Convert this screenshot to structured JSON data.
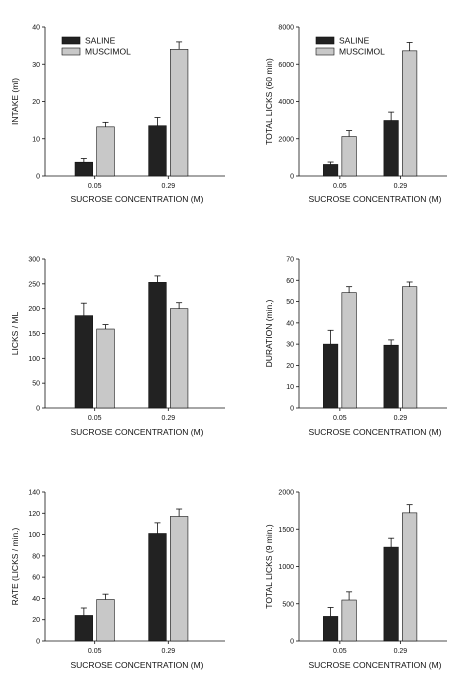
{
  "colors": {
    "saline": "#222222",
    "muscimol": "#c8c8c8",
    "axis": "#111111",
    "error_bar": "#111111"
  },
  "chart_data": [
    {
      "type": "bar",
      "categories": [
        "0.05",
        "0.29"
      ],
      "xlabel": "SUCROSE CONCENTRATION (M)",
      "ylabel": "INTAKE (ml)",
      "ylim": [
        0,
        40
      ],
      "yticks": [
        "0",
        "10",
        "20",
        "30",
        "40"
      ],
      "legend": {
        "position": "top-left",
        "entries": [
          "SALINE",
          "MUSCIMOL"
        ]
      },
      "series": [
        {
          "name": "SALINE",
          "values": [
            3.7,
            13.5
          ],
          "errors": [
            1.0,
            2.2
          ]
        },
        {
          "name": "MUSCIMOL",
          "values": [
            13.2,
            34.0
          ],
          "errors": [
            1.2,
            2.0
          ]
        }
      ]
    },
    {
      "type": "bar",
      "categories": [
        "0.05",
        "0.29"
      ],
      "xlabel": "SUCROSE CONCENTRATION (M)",
      "ylabel": "TOTAL LICKS (60 min)",
      "ylim": [
        0,
        8000
      ],
      "yticks": [
        "0",
        "2000",
        "4000",
        "6000",
        "8000"
      ],
      "legend": {
        "position": "top-left",
        "entries": [
          "SALINE",
          "MUSCIMOL"
        ]
      },
      "series": [
        {
          "name": "SALINE",
          "values": [
            620,
            2980
          ],
          "errors": [
            130,
            450
          ]
        },
        {
          "name": "MUSCIMOL",
          "values": [
            2120,
            6720
          ],
          "errors": [
            320,
            450
          ]
        }
      ]
    },
    {
      "type": "bar",
      "categories": [
        "0.05",
        "0.29"
      ],
      "xlabel": "SUCROSE CONCENTRATION (M)",
      "ylabel": "LICKS / ML",
      "ylim": [
        0,
        300
      ],
      "yticks": [
        "0",
        "50",
        "100",
        "150",
        "200",
        "250",
        "300"
      ],
      "series": [
        {
          "name": "SALINE",
          "values": [
            186,
            253
          ],
          "errors": [
            25,
            13
          ]
        },
        {
          "name": "MUSCIMOL",
          "values": [
            159,
            200
          ],
          "errors": [
            9,
            12
          ]
        }
      ]
    },
    {
      "type": "bar",
      "categories": [
        "0.05",
        "0.29"
      ],
      "xlabel": "SUCROSE CONCENTRATION (M)",
      "ylabel": "DURATION (min.)",
      "ylim": [
        0,
        70
      ],
      "yticks": [
        "0",
        "10",
        "20",
        "30",
        "40",
        "50",
        "60",
        "70"
      ],
      "series": [
        {
          "name": "SALINE",
          "values": [
            30,
            29.5
          ],
          "errors": [
            6.5,
            2.5
          ]
        },
        {
          "name": "MUSCIMOL",
          "values": [
            54.2,
            57.0
          ],
          "errors": [
            2.8,
            2.2
          ]
        }
      ]
    },
    {
      "type": "bar",
      "categories": [
        "0.05",
        "0.29"
      ],
      "xlabel": "SUCROSE CONCENTRATION (M)",
      "ylabel": "RATE (LICKS / min.)",
      "ylim": [
        0,
        140
      ],
      "yticks": [
        "0",
        "20",
        "40",
        "60",
        "80",
        "100",
        "120",
        "140"
      ],
      "series": [
        {
          "name": "SALINE",
          "values": [
            24,
            101
          ],
          "errors": [
            7,
            10
          ]
        },
        {
          "name": "MUSCIMOL",
          "values": [
            39,
            117
          ],
          "errors": [
            5,
            7
          ]
        }
      ]
    },
    {
      "type": "bar",
      "categories": [
        "0.05",
        "0.29"
      ],
      "xlabel": "SUCROSE CONCENTRATION (M)",
      "ylabel": "TOTAL LICKS (9 min.)",
      "ylim": [
        0,
        2000
      ],
      "yticks": [
        "0",
        "500",
        "1000",
        "1500",
        "2000"
      ],
      "series": [
        {
          "name": "SALINE",
          "values": [
            330,
            1260
          ],
          "errors": [
            120,
            120
          ]
        },
        {
          "name": "MUSCIMOL",
          "values": [
            550,
            1720
          ],
          "errors": [
            110,
            110
          ]
        }
      ]
    }
  ]
}
